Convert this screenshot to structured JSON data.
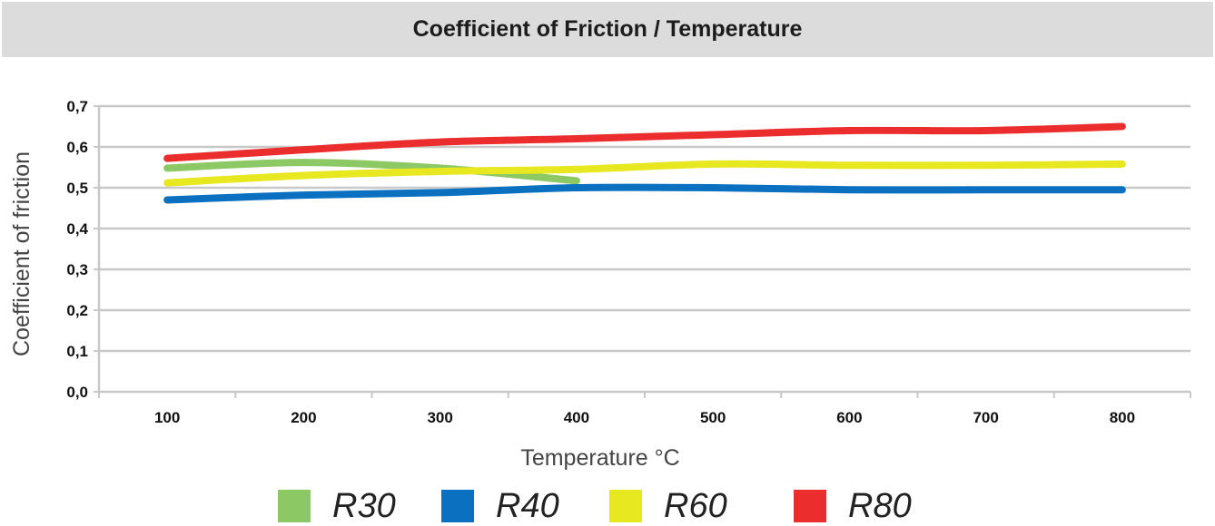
{
  "chart_data": {
    "type": "line",
    "title": "Coefficient of Friction / Temperature",
    "xlabel": "Temperature °C",
    "ylabel": "Coefficient of friction",
    "categories": [
      "100",
      "200",
      "300",
      "400",
      "500",
      "600",
      "700",
      "800"
    ],
    "x": [
      100,
      200,
      300,
      400,
      500,
      600,
      700,
      800
    ],
    "ylim": [
      0,
      0.7
    ],
    "yticks": [
      "0,0",
      "0,1",
      "0,2",
      "0,3",
      "0,4",
      "0,5",
      "0,6",
      "0,7"
    ],
    "grid": true,
    "legend_position": "bottom",
    "series": [
      {
        "name": "R30",
        "color": "#8cc864",
        "x": [
          100,
          200,
          300,
          400
        ],
        "values": [
          0.548,
          0.562,
          0.548,
          0.517
        ]
      },
      {
        "name": "R40",
        "color": "#0a70bf",
        "x": [
          100,
          200,
          300,
          400,
          500,
          600,
          700,
          800
        ],
        "values": [
          0.47,
          0.482,
          0.488,
          0.5,
          0.5,
          0.495,
          0.495,
          0.495
        ]
      },
      {
        "name": "R60",
        "color": "#e8e820",
        "x": [
          100,
          200,
          300,
          400,
          500,
          600,
          700,
          800
        ],
        "values": [
          0.512,
          0.53,
          0.54,
          0.545,
          0.558,
          0.555,
          0.555,
          0.558
        ]
      },
      {
        "name": "R80",
        "color": "#ec2d2d",
        "x": [
          100,
          200,
          300,
          400,
          500,
          600,
          700,
          800
        ],
        "values": [
          0.572,
          0.593,
          0.612,
          0.62,
          0.63,
          0.64,
          0.64,
          0.65
        ]
      }
    ]
  }
}
